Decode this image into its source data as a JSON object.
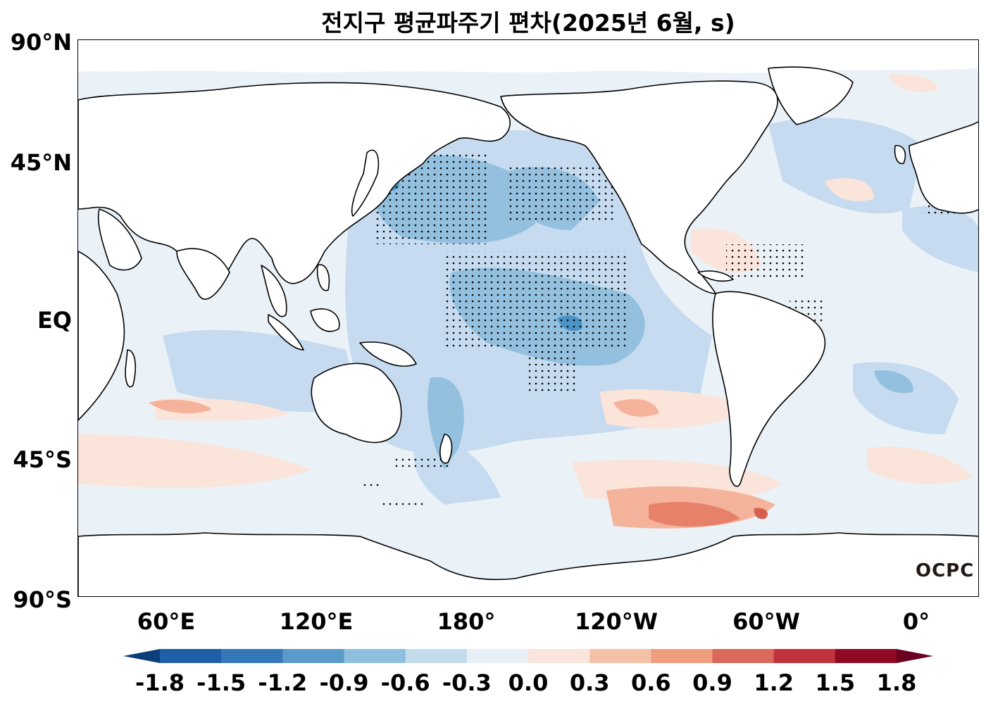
{
  "title": "전지구 평균파주기 편차(2025년 6월, s)",
  "colors": {
    "ocean_base": "#eaf2f8",
    "land": "#ffffff",
    "coast": "#000000",
    "neg_light": "#c6dbef",
    "neg_mid": "#92c0de",
    "neg_strong": "#4a93c6",
    "pos_light": "#fbe4da",
    "pos_mid": "#f4b39a",
    "pos_strong": "#e8816a",
    "pos_darker": "#d6604d"
  },
  "y_axis": {
    "ticks": [
      "90°N",
      "45°N",
      "EQ",
      "45°S",
      "90°S"
    ]
  },
  "x_axis": {
    "ticks": [
      "60°E",
      "120°E",
      "180°",
      "120°W",
      "60°W",
      "0°"
    ]
  },
  "colorbar": {
    "ticks": [
      "-1.8",
      "-1.5",
      "-1.2",
      "-0.9",
      "-0.6",
      "-0.3",
      "0.0",
      "0.3",
      "0.6",
      "0.9",
      "1.2",
      "1.5",
      "1.8"
    ],
    "colors": [
      "#0b3d78",
      "#1f5fa5",
      "#3478b8",
      "#5b9bcb",
      "#8fbfdd",
      "#c2dcec",
      "#e8f0f5",
      "#fae5dc",
      "#f5c2a8",
      "#ee9d7f",
      "#d9695a",
      "#c0323c",
      "#900a25",
      "#6a0020"
    ]
  },
  "logo": "OCPC"
}
